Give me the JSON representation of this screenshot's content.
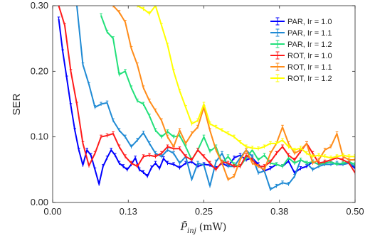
{
  "chart_data": {
    "type": "line",
    "xlabel_main": "P̄",
    "xlabel_sub": "inj",
    "xlabel_unit": "(mW)",
    "ylabel": "SER",
    "xlim": [
      0.0,
      0.5
    ],
    "ylim": [
      0.0,
      0.3
    ],
    "xticks": [
      0.0,
      0.125,
      0.25,
      0.375,
      0.5
    ],
    "xtick_labels": [
      "0.00",
      "0.13",
      "0.25",
      "0.38",
      "0.50"
    ],
    "yticks": [
      0.0,
      0.1,
      0.2,
      0.3
    ],
    "ytick_labels": [
      "0.00",
      "0.10",
      "0.20",
      "0.30"
    ],
    "grid": false,
    "legend_position": "top-right",
    "series": [
      {
        "name": "PAR, Ir = 1.0",
        "color": "#0000ff",
        "x": [
          0.01,
          0.0167,
          0.0233,
          0.03,
          0.0367,
          0.0433,
          0.05,
          0.0567,
          0.0633,
          0.07,
          0.0767,
          0.0833,
          0.09,
          0.0967,
          0.1033,
          0.11,
          0.1167,
          0.1233,
          0.13,
          0.1367,
          0.1433,
          0.15,
          0.1567,
          0.1633,
          0.17,
          0.1767,
          0.1833,
          0.19,
          0.2,
          0.21,
          0.22,
          0.23,
          0.24,
          0.25,
          0.26,
          0.27,
          0.28,
          0.29,
          0.3,
          0.31,
          0.32,
          0.33,
          0.34,
          0.35,
          0.36,
          0.37,
          0.38,
          0.39,
          0.4,
          0.41,
          0.42,
          0.43,
          0.44,
          0.45,
          0.46,
          0.47,
          0.48,
          0.49,
          0.5
        ],
        "y": [
          0.28,
          0.23,
          0.19,
          0.148,
          0.11,
          0.08,
          0.057,
          0.08,
          0.072,
          0.05,
          0.028,
          0.055,
          0.068,
          0.08,
          0.072,
          0.06,
          0.055,
          0.05,
          0.058,
          0.068,
          0.05,
          0.046,
          0.04,
          0.053,
          0.06,
          0.052,
          0.067,
          0.06,
          0.058,
          0.053,
          0.06,
          0.062,
          0.055,
          0.058,
          0.057,
          0.052,
          0.06,
          0.055,
          0.068,
          0.072,
          0.065,
          0.068,
          0.058,
          0.048,
          0.052,
          0.058,
          0.055,
          0.063,
          0.045,
          0.052,
          0.055,
          0.062,
          0.058,
          0.06,
          0.062,
          0.058,
          0.058,
          0.06,
          0.052
        ]
      },
      {
        "name": "PAR, Ir = 1.1",
        "color": "#1f8ad4",
        "x": [
          0.04,
          0.05,
          0.06,
          0.07,
          0.08,
          0.09,
          0.1,
          0.11,
          0.12,
          0.13,
          0.14,
          0.15,
          0.16,
          0.17,
          0.18,
          0.19,
          0.2,
          0.21,
          0.22,
          0.23,
          0.24,
          0.25,
          0.26,
          0.27,
          0.28,
          0.29,
          0.3,
          0.31,
          0.32,
          0.33,
          0.34,
          0.35,
          0.36,
          0.37,
          0.38,
          0.39,
          0.4,
          0.41,
          0.42,
          0.43,
          0.44,
          0.45,
          0.46,
          0.47,
          0.48,
          0.49,
          0.5
        ],
        "y": [
          0.3,
          0.21,
          0.18,
          0.145,
          0.15,
          0.152,
          0.125,
          0.11,
          0.1,
          0.085,
          0.095,
          0.106,
          0.09,
          0.075,
          0.07,
          0.08,
          0.075,
          0.06,
          0.07,
          0.035,
          0.06,
          0.057,
          0.025,
          0.062,
          0.075,
          0.055,
          0.055,
          0.068,
          0.08,
          0.07,
          0.045,
          0.048,
          0.02,
          0.025,
          0.03,
          0.028,
          0.04,
          0.065,
          0.06,
          0.05,
          0.055,
          0.058,
          0.058,
          0.06,
          0.058,
          0.06,
          0.055
        ]
      },
      {
        "name": "PAR, Ir = 1.2",
        "color": "#22e07a",
        "x": [
          0.08,
          0.09,
          0.1,
          0.11,
          0.12,
          0.13,
          0.14,
          0.15,
          0.16,
          0.17,
          0.18,
          0.19,
          0.2,
          0.21,
          0.22,
          0.23,
          0.24,
          0.25,
          0.26,
          0.27,
          0.28,
          0.29,
          0.3,
          0.31,
          0.32,
          0.33,
          0.34,
          0.35,
          0.36,
          0.37,
          0.38,
          0.39,
          0.4,
          0.41,
          0.42,
          0.43,
          0.44,
          0.45,
          0.46,
          0.47,
          0.48,
          0.49,
          0.5
        ],
        "y": [
          0.285,
          0.26,
          0.25,
          0.195,
          0.2,
          0.175,
          0.155,
          0.15,
          0.132,
          0.11,
          0.1,
          0.108,
          0.1,
          0.102,
          0.085,
          0.065,
          0.08,
          0.1,
          0.078,
          0.085,
          0.06,
          0.07,
          0.058,
          0.055,
          0.068,
          0.08,
          0.065,
          0.072,
          0.06,
          0.058,
          0.055,
          0.068,
          0.06,
          0.065,
          0.06,
          0.062,
          0.058,
          0.06,
          0.062,
          0.058,
          0.06,
          0.062,
          0.058
        ]
      },
      {
        "name": "ROT, Ir = 1.0",
        "color": "#ff1a1a",
        "x": [
          0.01,
          0.02,
          0.03,
          0.04,
          0.05,
          0.06,
          0.07,
          0.08,
          0.09,
          0.1,
          0.11,
          0.12,
          0.13,
          0.14,
          0.15,
          0.16,
          0.17,
          0.18,
          0.19,
          0.2,
          0.21,
          0.22,
          0.23,
          0.24,
          0.25,
          0.26,
          0.27,
          0.28,
          0.29,
          0.3,
          0.31,
          0.32,
          0.33,
          0.34,
          0.35,
          0.36,
          0.37,
          0.38,
          0.39,
          0.4,
          0.41,
          0.42,
          0.43,
          0.44,
          0.45,
          0.46,
          0.47,
          0.48,
          0.49,
          0.5
        ],
        "y": [
          0.3,
          0.27,
          0.2,
          0.15,
          0.09,
          0.056,
          0.075,
          0.1,
          0.102,
          0.105,
          0.085,
          0.07,
          0.06,
          0.055,
          0.07,
          0.072,
          0.07,
          0.075,
          0.085,
          0.082,
          0.082,
          0.07,
          0.065,
          0.08,
          0.07,
          0.06,
          0.05,
          0.062,
          0.06,
          0.055,
          0.055,
          0.072,
          0.065,
          0.055,
          0.055,
          0.062,
          0.075,
          0.085,
          0.072,
          0.065,
          0.078,
          0.09,
          0.075,
          0.06,
          0.062,
          0.065,
          0.068,
          0.065,
          0.06,
          0.045
        ]
      },
      {
        "name": "ROT, Ir = 1.1",
        "color": "#ff8c1a",
        "x": [
          0.1,
          0.11,
          0.12,
          0.13,
          0.14,
          0.15,
          0.16,
          0.17,
          0.18,
          0.19,
          0.2,
          0.21,
          0.22,
          0.23,
          0.24,
          0.25,
          0.26,
          0.27,
          0.28,
          0.29,
          0.3,
          0.31,
          0.32,
          0.33,
          0.34,
          0.35,
          0.36,
          0.37,
          0.38,
          0.39,
          0.4,
          0.41,
          0.42,
          0.43,
          0.44,
          0.45,
          0.46,
          0.47,
          0.48,
          0.49,
          0.5
        ],
        "y": [
          0.3,
          0.29,
          0.275,
          0.235,
          0.21,
          0.175,
          0.155,
          0.14,
          0.125,
          0.1,
          0.085,
          0.11,
          0.09,
          0.105,
          0.115,
          0.145,
          0.11,
          0.08,
          0.06,
          0.035,
          0.04,
          0.065,
          0.08,
          0.06,
          0.055,
          0.05,
          0.075,
          0.09,
          0.115,
          0.09,
          0.075,
          0.08,
          0.09,
          0.06,
          0.065,
          0.08,
          0.085,
          0.105,
          0.07,
          0.065,
          0.065
        ]
      },
      {
        "name": "ROT, Ir = 1.2",
        "color": "#ffff00",
        "x": [
          0.14,
          0.15,
          0.16,
          0.17,
          0.18,
          0.19,
          0.2,
          0.21,
          0.22,
          0.23,
          0.24,
          0.25,
          0.26,
          0.27,
          0.28,
          0.29,
          0.3,
          0.31,
          0.32,
          0.33,
          0.34,
          0.35,
          0.36,
          0.37,
          0.38,
          0.39,
          0.4,
          0.41,
          0.42,
          0.43,
          0.44,
          0.45,
          0.46,
          0.47,
          0.48,
          0.49,
          0.5
        ],
        "y": [
          0.3,
          0.295,
          0.288,
          0.3,
          0.27,
          0.24,
          0.2,
          0.17,
          0.145,
          0.12,
          0.125,
          0.15,
          0.12,
          0.115,
          0.11,
          0.105,
          0.1,
          0.092,
          0.085,
          0.083,
          0.082,
          0.085,
          0.09,
          0.09,
          0.095,
          0.085,
          0.08,
          0.083,
          0.075,
          0.07,
          0.072,
          0.07,
          0.068,
          0.07,
          0.072,
          0.07,
          0.07
        ]
      }
    ]
  }
}
